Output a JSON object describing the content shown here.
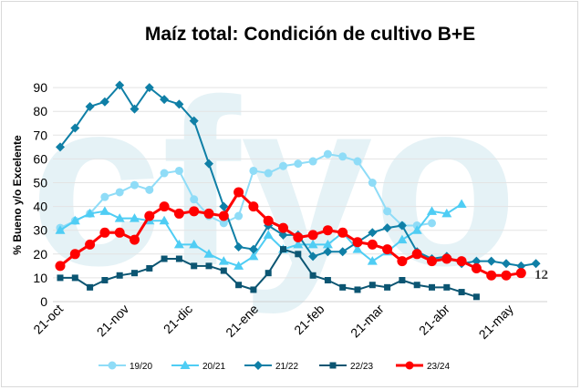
{
  "chart_data": {
    "type": "line",
    "title": "Maíz total: Condición de cultivo B+E",
    "ylabel": "% Bueno y/o Excelente",
    "xlabel": "",
    "ylim": [
      0,
      95
    ],
    "yticks": [
      0,
      10,
      20,
      30,
      40,
      50,
      60,
      70,
      80,
      90
    ],
    "x_tick_labels": [
      "21-oct",
      "21-nov",
      "21-dic",
      "21-ene",
      "21-feb",
      "21-mar",
      "21-abr",
      "21-may"
    ],
    "x_tick_week_index": [
      0,
      4.43,
      8.71,
      13.14,
      17.57,
      21.57,
      26,
      30.29
    ],
    "x_unit": "weekly observations starting 21-oct",
    "grid": true,
    "legend_position": "bottom",
    "annotation": "12",
    "watermark": "cfyo",
    "series": [
      {
        "name": "19/20",
        "color": "#8fdcf7",
        "marker": "circle",
        "values": [
          31,
          34,
          37,
          44,
          46,
          49,
          47,
          54,
          55,
          43,
          36,
          33,
          36,
          55,
          54,
          57,
          58,
          59,
          62,
          61,
          59,
          50,
          38,
          32,
          32,
          33
        ]
      },
      {
        "name": "20/21",
        "color": "#4fcdf4",
        "marker": "triangle",
        "values": [
          30,
          34,
          37,
          38,
          35,
          35,
          34,
          34,
          24,
          24,
          20,
          17,
          15,
          19,
          28,
          22,
          24,
          24,
          24,
          29,
          22,
          17,
          21,
          26,
          30,
          38,
          37,
          41
        ]
      },
      {
        "name": "21/22",
        "color": "#0f7fa6",
        "marker": "diamond",
        "values": [
          65,
          73,
          82,
          84,
          91,
          81,
          90,
          85,
          83,
          76,
          58,
          40,
          23,
          22,
          32,
          28,
          28,
          19,
          21,
          21,
          25,
          29,
          31,
          32,
          21,
          18,
          19,
          16,
          17,
          17,
          16,
          15,
          16
        ]
      },
      {
        "name": "22/23",
        "color": "#0b5572",
        "marker": "square",
        "values": [
          10,
          10,
          6,
          9,
          11,
          12,
          14,
          18,
          18,
          15,
          15,
          13,
          7,
          5,
          12,
          22,
          20,
          11,
          9,
          6,
          5,
          7,
          6,
          9,
          7,
          6,
          6,
          4,
          2
        ]
      },
      {
        "name": "23/24",
        "color": "#ff0000",
        "marker": "circle",
        "values": [
          15,
          20,
          24,
          29,
          29,
          26,
          36,
          40,
          37,
          38,
          37,
          36,
          46,
          40,
          34,
          31,
          27,
          28,
          30,
          29,
          25,
          24,
          22,
          17,
          20,
          17,
          18,
          17,
          14,
          11,
          11,
          12
        ]
      }
    ]
  }
}
